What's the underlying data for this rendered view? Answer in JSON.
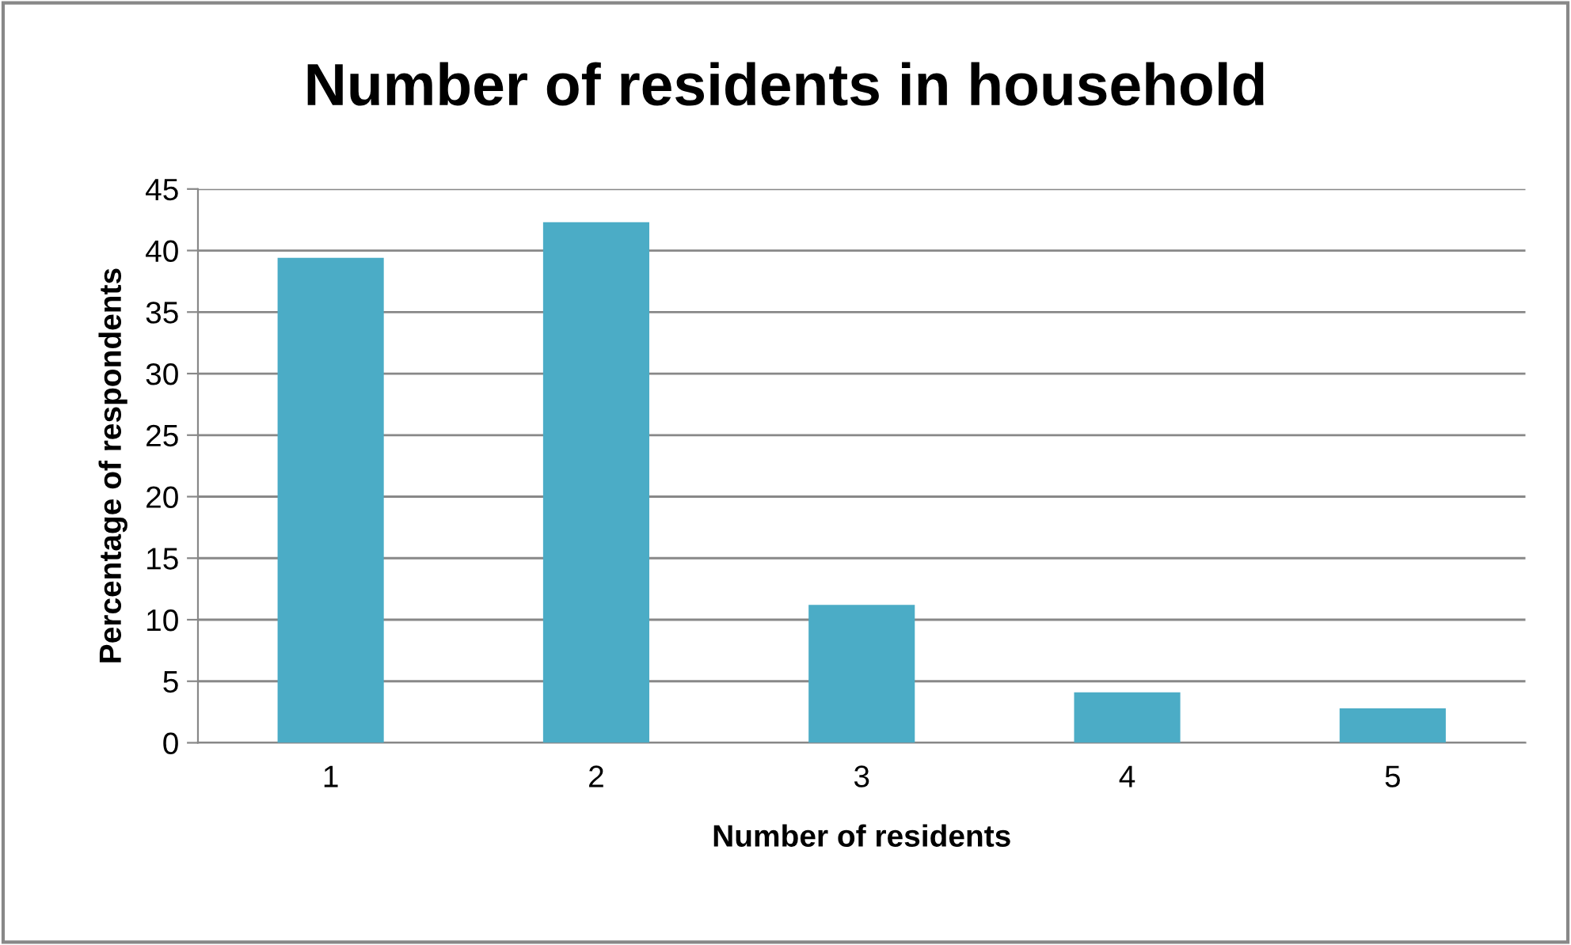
{
  "chart_data": {
    "type": "bar",
    "title": "Number of residents in household",
    "xlabel": "Number of residents",
    "ylabel": "Percentage of respondents",
    "categories": [
      "1",
      "2",
      "3",
      "4",
      "5"
    ],
    "values": [
      39.4,
      42.3,
      11.2,
      4.1,
      2.8
    ],
    "color": "#4bacc6",
    "ylim": [
      0,
      45
    ],
    "yticks": [
      0,
      5,
      10,
      15,
      20,
      25,
      30,
      35,
      40,
      45
    ],
    "grid": "y",
    "legend": false
  }
}
